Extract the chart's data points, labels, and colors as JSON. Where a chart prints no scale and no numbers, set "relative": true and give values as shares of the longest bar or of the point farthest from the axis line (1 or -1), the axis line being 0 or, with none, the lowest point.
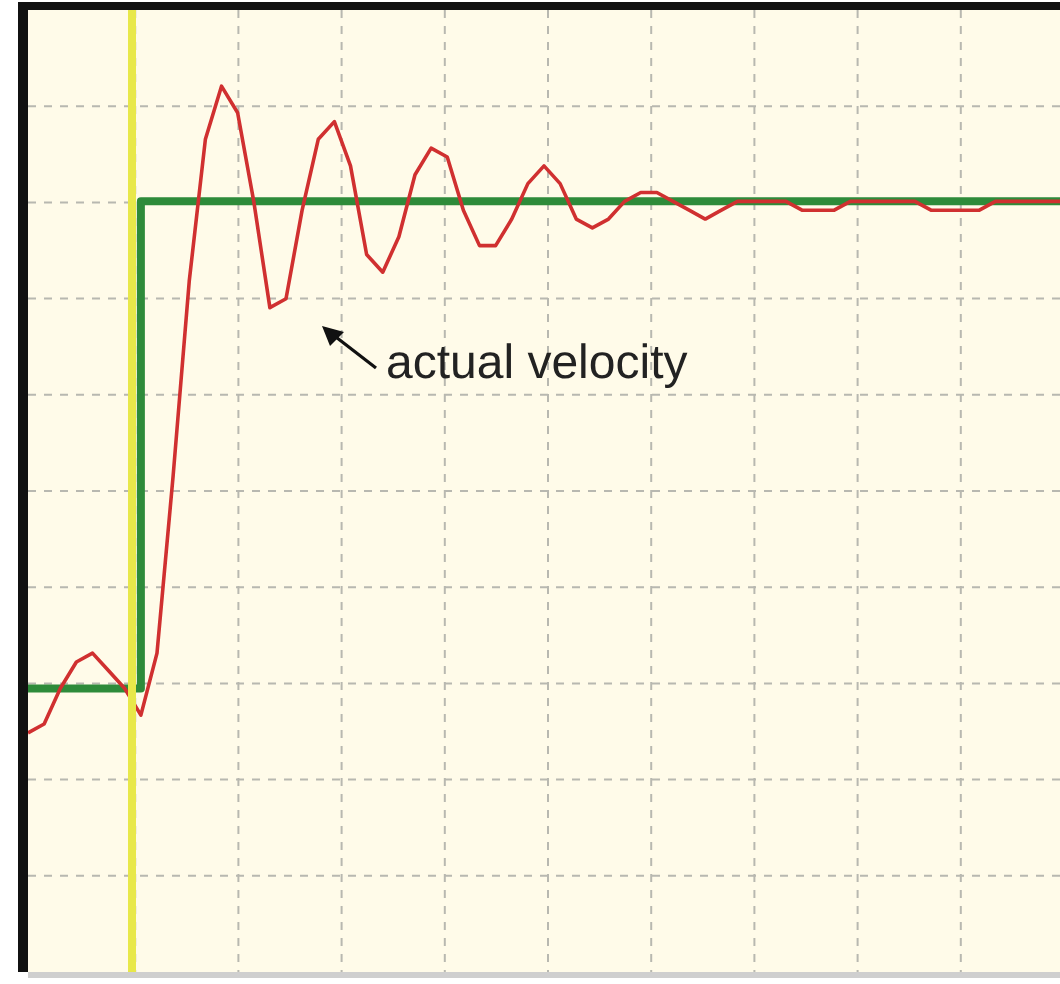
{
  "chart_data": {
    "type": "line",
    "relative": true,
    "grid": true,
    "legend": false,
    "marker": "none",
    "categories": [
      null,
      null,
      null,
      null,
      null,
      null,
      null,
      null,
      null,
      null,
      null,
      null,
      null,
      null,
      null,
      null,
      null,
      null,
      null,
      null,
      null,
      null,
      null,
      null,
      null,
      null,
      null,
      null,
      null,
      null,
      null,
      null,
      null,
      null,
      null,
      null,
      null,
      null,
      null,
      null,
      null,
      null,
      null,
      null,
      null,
      null,
      null,
      null,
      null,
      null,
      null,
      null,
      null,
      null,
      null,
      null,
      null,
      null,
      null,
      null,
      null,
      null,
      null,
      null,
      null
    ],
    "series": [
      {
        "type": "step",
        "color": "#2e8b3a",
        "values": [
          0.32,
          0.32,
          0.32,
          0.32,
          0.32,
          0.32,
          0.32,
          0.87,
          0.87,
          0.87,
          0.87,
          0.87,
          0.87,
          0.87,
          0.87,
          0.87,
          0.87,
          0.87,
          0.87,
          0.87,
          0.87,
          0.87,
          0.87,
          0.87,
          0.87,
          0.87,
          0.87,
          0.87,
          0.87,
          0.87,
          0.87,
          0.87,
          0.87,
          0.87,
          0.87,
          0.87,
          0.87,
          0.87,
          0.87,
          0.87,
          0.87,
          0.87,
          0.87,
          0.87,
          0.87,
          0.87,
          0.87,
          0.87,
          0.87,
          0.87,
          0.87,
          0.87,
          0.87,
          0.87,
          0.87,
          0.87,
          0.87,
          0.87,
          0.87,
          0.87,
          0.87,
          0.87,
          0.87,
          0.87,
          0.87
        ]
      },
      {
        "type": "line",
        "color": "#d03030",
        "values": [
          0.27,
          0.28,
          0.32,
          0.35,
          0.36,
          0.34,
          0.32,
          0.29,
          0.36,
          0.56,
          0.78,
          0.94,
          1,
          0.97,
          0.87,
          0.75,
          0.76,
          0.86,
          0.94,
          0.96,
          0.91,
          0.81,
          0.79,
          0.83,
          0.9,
          0.93,
          0.92,
          0.86,
          0.82,
          0.82,
          0.85,
          0.89,
          0.91,
          0.89,
          0.85,
          0.84,
          0.85,
          0.87,
          0.88,
          0.88,
          0.87,
          0.86,
          0.85,
          0.86,
          0.87,
          0.87,
          0.87,
          0.87,
          0.86,
          0.86,
          0.86,
          0.87,
          0.87,
          0.87,
          0.87,
          0.87,
          0.86,
          0.86,
          0.86,
          0.86,
          0.87,
          0.87,
          0.87,
          0.87,
          0.87
        ]
      }
    ],
    "annotations": [
      "actual velocity"
    ]
  }
}
